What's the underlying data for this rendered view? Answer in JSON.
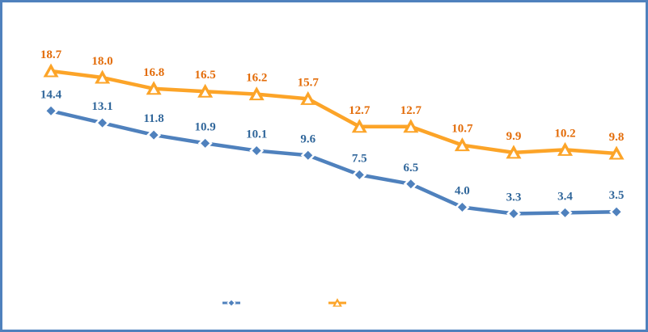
{
  "frame": {
    "background_color": "#FFFFFF",
    "border_color": "#4F81BD"
  },
  "chart_data": {
    "type": "line",
    "title": "",
    "xlabel": "",
    "ylabel": "",
    "axes_visible": false,
    "gridlines": false,
    "data_labels": true,
    "x_tick_labels_visible": false,
    "points_count": 12,
    "series": [
      {
        "id": "blue",
        "name": "blue-diamond-series",
        "marker": "diamond",
        "line_color": "#4F81BD",
        "marker_fill": "#FFFFFF",
        "marker_inner_color": "#4F81BD",
        "label_color": "#31679B",
        "values": [
          14.4,
          13.1,
          11.8,
          10.9,
          10.1,
          9.6,
          7.5,
          6.5,
          4.0,
          3.3,
          3.4,
          3.5
        ]
      },
      {
        "id": "orange",
        "name": "orange-triangle-series",
        "marker": "triangle",
        "line_color": "#FCA428",
        "marker_fill": "#FCA428",
        "marker_inner_color": "#FFFFFF",
        "label_color": "#E36C09",
        "values": [
          18.7,
          18.0,
          16.8,
          16.5,
          16.2,
          15.7,
          12.7,
          12.7,
          10.7,
          9.9,
          10.2,
          9.8
        ]
      }
    ],
    "legend": {
      "position": "bottom",
      "labels_visible": false,
      "entries": [
        {
          "series": "blue",
          "key": "blue-diamond-legend-key"
        },
        {
          "series": "orange",
          "key": "orange-triangle-legend-key"
        }
      ]
    }
  }
}
